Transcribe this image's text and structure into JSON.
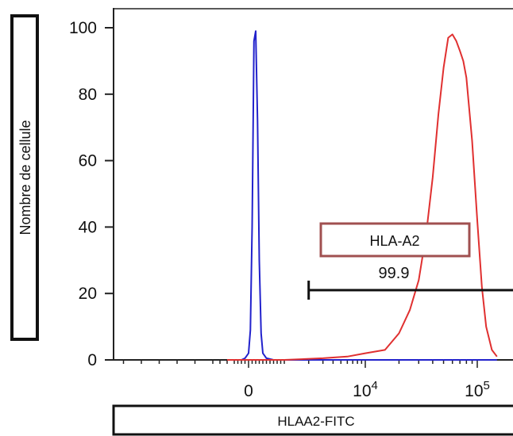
{
  "chart_data": {
    "type": "line",
    "ylabel": "Nombre de cellule",
    "xlabel": "HLAA2-FITC",
    "yticks": [
      0,
      20,
      40,
      60,
      80,
      100
    ],
    "ylim": [
      0,
      100
    ],
    "xticks": [
      {
        "label": "0",
        "sup": ""
      },
      {
        "label": "10",
        "sup": "4"
      },
      {
        "label": "10",
        "sup": "5"
      }
    ],
    "x_scale": "biexponential",
    "grid": false,
    "series": [
      {
        "color": "#2222cc",
        "x": [
          -600,
          -400,
          -200,
          -100,
          0,
          50,
          100,
          150,
          200,
          250,
          300,
          350,
          400,
          500,
          700,
          1000,
          3000,
          10000,
          100000,
          150000
        ],
        "y": [
          0,
          0,
          0,
          0.5,
          2,
          9,
          40,
          96,
          99,
          72,
          30,
          8,
          2,
          0.5,
          0,
          0,
          0,
          0,
          0,
          0
        ]
      },
      {
        "color": "#e03030",
        "x": [
          -600,
          0,
          1000,
          3000,
          6000,
          10000,
          15000,
          20000,
          25000,
          30000,
          35000,
          40000,
          45000,
          50000,
          55000,
          60000,
          65000,
          70000,
          75000,
          80000,
          90000,
          100000,
          110000,
          120000,
          135000,
          150000
        ],
        "y": [
          0,
          0,
          0,
          0.5,
          1,
          2,
          3,
          8,
          15,
          24,
          38,
          55,
          74,
          88,
          97,
          98,
          96,
          93,
          90,
          85,
          66,
          42,
          22,
          10,
          3,
          1
        ]
      }
    ],
    "annotations": {
      "gate_label": "HLA-A2",
      "gate_value": "99.9",
      "gate_x_start": 2000,
      "gate_y": 21
    }
  }
}
